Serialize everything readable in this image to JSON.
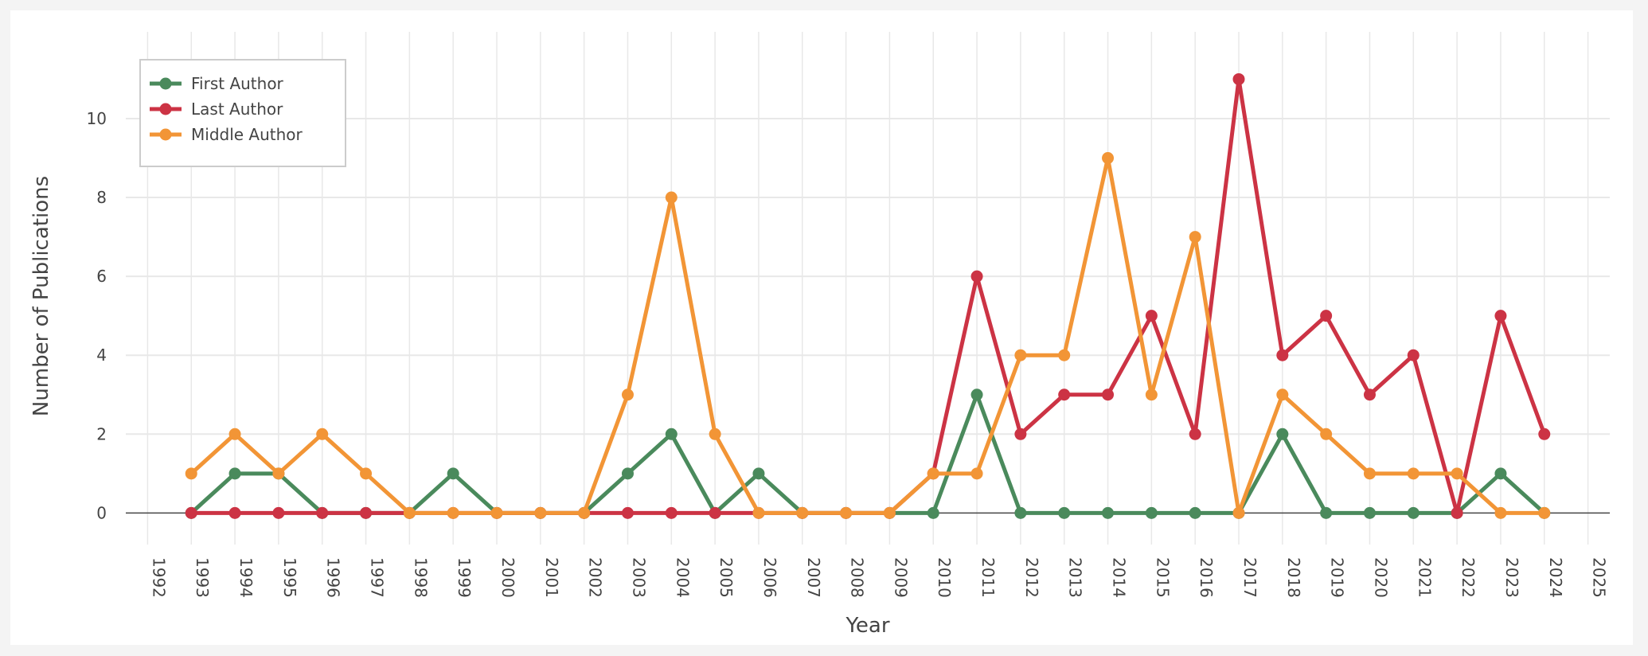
{
  "chart_data": {
    "type": "line",
    "title": "",
    "xlabel": "Year",
    "ylabel": "Number of Publications",
    "xlim": [
      1991.5,
      2025.5
    ],
    "ylim": [
      -0.8,
      12.2
    ],
    "x_ticks": [
      1992,
      1993,
      1994,
      1995,
      1996,
      1997,
      1998,
      1999,
      2000,
      2001,
      2002,
      2003,
      2004,
      2005,
      2006,
      2007,
      2008,
      2009,
      2010,
      2011,
      2012,
      2013,
      2014,
      2015,
      2016,
      2017,
      2018,
      2019,
      2020,
      2021,
      2022,
      2023,
      2024,
      2025
    ],
    "y_ticks": [
      0,
      2,
      4,
      6,
      8,
      10
    ],
    "grid": true,
    "legend_position": "top-left",
    "x": [
      1993,
      1994,
      1995,
      1996,
      1997,
      1998,
      1999,
      2000,
      2001,
      2002,
      2003,
      2004,
      2005,
      2006,
      2007,
      2008,
      2009,
      2010,
      2011,
      2012,
      2013,
      2014,
      2015,
      2016,
      2017,
      2018,
      2019,
      2020,
      2021,
      2022,
      2023,
      2024
    ],
    "series": [
      {
        "name": "First Author",
        "color": "#4a8a5c",
        "values": [
          0,
          1,
          1,
          0,
          0,
          0,
          1,
          0,
          0,
          0,
          1,
          2,
          0,
          1,
          0,
          0,
          0,
          0,
          3,
          0,
          0,
          0,
          0,
          0,
          0,
          2,
          0,
          0,
          0,
          0,
          1,
          0
        ]
      },
      {
        "name": "Last Author",
        "color": "#cc3344",
        "values": [
          0,
          0,
          0,
          0,
          0,
          0,
          0,
          0,
          0,
          0,
          0,
          0,
          0,
          0,
          0,
          0,
          0,
          1,
          6,
          2,
          3,
          3,
          5,
          2,
          11,
          4,
          5,
          3,
          4,
          0,
          5,
          2
        ]
      },
      {
        "name": "Middle Author",
        "color": "#f29536",
        "values": [
          1,
          2,
          1,
          2,
          1,
          0,
          0,
          0,
          0,
          0,
          3,
          8,
          2,
          0,
          0,
          0,
          0,
          1,
          1,
          4,
          4,
          9,
          3,
          7,
          0,
          3,
          2,
          1,
          1,
          1,
          0,
          0
        ]
      }
    ]
  }
}
